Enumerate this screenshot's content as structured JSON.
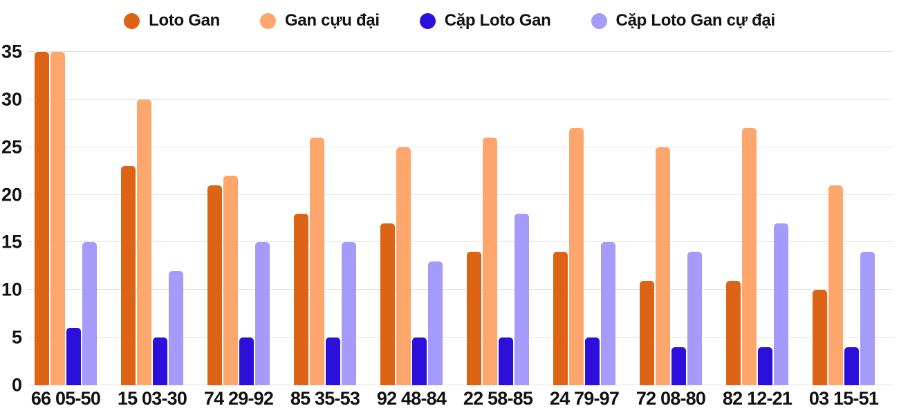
{
  "chart_data": {
    "type": "bar",
    "title": "",
    "xlabel": "",
    "ylabel": "",
    "ylim": [
      0,
      35
    ],
    "y_ticks": [
      0,
      5,
      10,
      15,
      20,
      25,
      30,
      35
    ],
    "grid": true,
    "legend_position": "top-center",
    "background_color": "#ffffff",
    "gridline_color": "#e4e4e4",
    "text_color": "#111111",
    "categories": [
      "66 05-50",
      "15 03-30",
      "74 29-92",
      "85 35-53",
      "92 48-84",
      "22 58-85",
      "24 79-97",
      "72 08-80",
      "82 12-21",
      "03 15-51"
    ],
    "series": [
      {
        "name": "Loto Gan",
        "color": "#dd6414",
        "values": [
          35,
          23,
          21,
          18,
          17,
          14,
          14,
          11,
          11,
          10
        ]
      },
      {
        "name": "Gan cựu đại",
        "color": "#ffa66c",
        "values": [
          35,
          30,
          22,
          26,
          25,
          26,
          27,
          25,
          27,
          21
        ]
      },
      {
        "name": "Cặp Loto Gan",
        "color": "#2b10dc",
        "values": [
          6,
          5,
          5,
          5,
          5,
          5,
          5,
          4,
          4,
          4
        ]
      },
      {
        "name": "Cặp Loto Gan cự đại",
        "color": "#a49bfa",
        "values": [
          15,
          12,
          15,
          15,
          13,
          18,
          15,
          14,
          17,
          14
        ]
      }
    ]
  }
}
